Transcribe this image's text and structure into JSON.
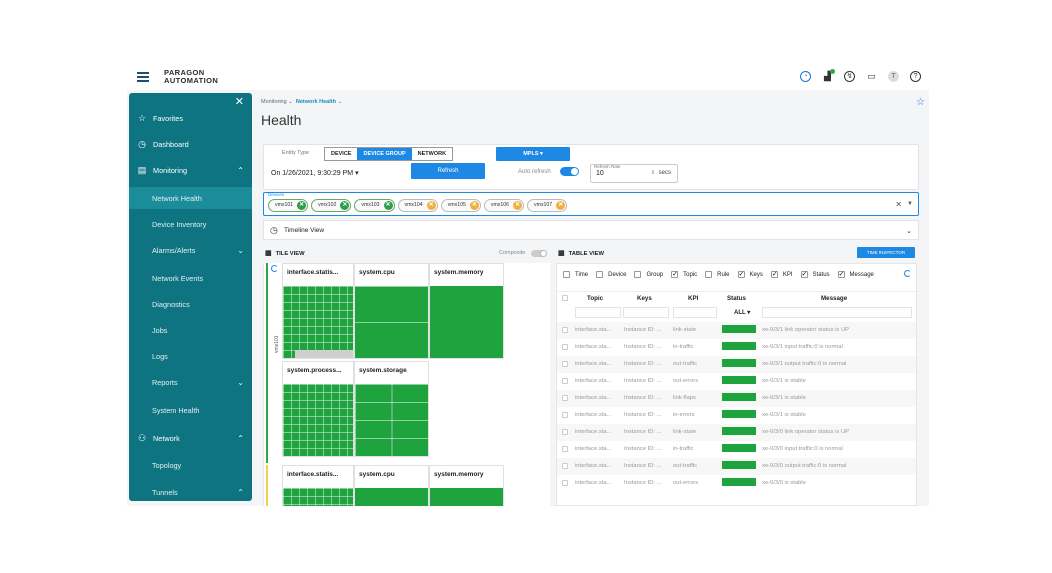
{
  "header": {
    "logo_line1": "PARAGON",
    "logo_line2": "AUTOMATION",
    "avatar_letter": "T",
    "icons": [
      "clock-icon",
      "network-status-icon",
      "timer-icon",
      "chat-icon",
      "avatar",
      "help-icon"
    ]
  },
  "sidebar": {
    "close": "✕",
    "items": [
      {
        "label": "Favorites",
        "icon": "star-icon",
        "glyph": "☆",
        "level": 0
      },
      {
        "label": "Dashboard",
        "icon": "dashboard-icon",
        "glyph": "◷",
        "level": 0
      },
      {
        "label": "Monitoring",
        "icon": "monitoring-icon",
        "glyph": "▤",
        "level": 0,
        "chevron": "up"
      },
      {
        "label": "Network Health",
        "level": 1,
        "active": true
      },
      {
        "label": "Device Inventory",
        "level": 1
      },
      {
        "label": "Alarms/Alerts",
        "level": 1,
        "chevron": "down"
      },
      {
        "label": "Network Events",
        "level": 1
      },
      {
        "label": "Diagnostics",
        "level": 1
      },
      {
        "label": "Jobs",
        "level": 1
      },
      {
        "label": "Logs",
        "level": 1
      },
      {
        "label": "Reports",
        "level": 1,
        "chevron": "down"
      },
      {
        "label": "System Health",
        "level": 1
      },
      {
        "label": "Network",
        "icon": "network-icon",
        "glyph": "⚇",
        "level": 0,
        "chevron": "up"
      },
      {
        "label": "Topology",
        "level": 1
      },
      {
        "label": "Tunnels",
        "level": 1,
        "chevron": "up"
      }
    ]
  },
  "breadcrumb": {
    "parent": "Monitoring",
    "current": "Network Health"
  },
  "page_title": "Health",
  "controls": {
    "entity_type_label": "Entity Type",
    "entity_types": [
      "DEVICE",
      "DEVICE GROUP",
      "NETWORK"
    ],
    "entity_selected": "DEVICE GROUP",
    "mpls_label": "MPLS",
    "date_label": "On 1/26/2021, 9:30:29 PM",
    "refresh_label": "Refresh",
    "auto_refresh_label": "Auto refresh",
    "auto_refresh_on": true,
    "refresh_rate_label": "Refresh Rate",
    "refresh_rate_value": "10",
    "refresh_rate_unit": "secs"
  },
  "devices": {
    "label": "Devices",
    "chips": [
      {
        "name": "vmx101",
        "state": "ok"
      },
      {
        "name": "vmx102",
        "state": "ok"
      },
      {
        "name": "vmx103",
        "state": "ok"
      },
      {
        "name": "vmx104",
        "state": "warn"
      },
      {
        "name": "vmx105",
        "state": "warn"
      },
      {
        "name": "vmx106",
        "state": "warn"
      },
      {
        "name": "vmx107",
        "state": "warn"
      }
    ]
  },
  "timeline": {
    "label": "Timeline View"
  },
  "tile_view": {
    "title": "TILE VIEW",
    "composite_label": "Composite",
    "group_label": "vmx101",
    "tiles": [
      "interface.statis...",
      "system.cpu",
      "system.memory",
      "system.process...",
      "system.storage"
    ],
    "tiles_next": [
      "interface.statis...",
      "system.cpu",
      "system.memory"
    ]
  },
  "table_view": {
    "title": "TABLE VIEW",
    "inspector_label": "TIME INSPECTOR",
    "column_toggles": [
      {
        "label": "Time",
        "on": false
      },
      {
        "label": "Device",
        "on": false
      },
      {
        "label": "Group",
        "on": false
      },
      {
        "label": "Topic",
        "on": true
      },
      {
        "label": "Rule",
        "on": false
      },
      {
        "label": "Keys",
        "on": true
      },
      {
        "label": "KPI",
        "on": true
      },
      {
        "label": "Status",
        "on": true
      },
      {
        "label": "Message",
        "on": true
      }
    ],
    "columns": {
      "topic": "Topic",
      "keys": "Keys",
      "kpi": "KPI",
      "status": "Status",
      "message": "Message"
    },
    "status_filter": "ALL",
    "status_color": "#1fa33e",
    "rows": [
      {
        "topic": "interface.sta...",
        "keys": "Instance ID: ...",
        "kpi": "link-state",
        "message": "xe-0/3/1 link operator status is UP"
      },
      {
        "topic": "interface.sta...",
        "keys": "Instance ID: ...",
        "kpi": "in-traffic",
        "message": "xe-0/3/1 input traffic:0 is normal"
      },
      {
        "topic": "interface.sta...",
        "keys": "Instance ID: ...",
        "kpi": "out-traffic",
        "message": "xe-0/3/1 output traffic:0 is normal"
      },
      {
        "topic": "interface.sta...",
        "keys": "Instance ID: ...",
        "kpi": "out-errors",
        "message": "xe-0/3/1 is stable"
      },
      {
        "topic": "interface.sta...",
        "keys": "Instance ID: ...",
        "kpi": "link-flaps",
        "message": "xe-0/3/1 is stable"
      },
      {
        "topic": "interface.sta...",
        "keys": "Instance ID: ...",
        "kpi": "in-errors",
        "message": "xe-0/3/1 is stable"
      },
      {
        "topic": "interface.sta...",
        "keys": "Instance ID: ...",
        "kpi": "link-state",
        "message": "xe-0/3/0 link operator status is UP"
      },
      {
        "topic": "interface.sta...",
        "keys": "Instance ID: ...",
        "kpi": "in-traffic",
        "message": "xe-0/3/0 input traffic:0 is normal"
      },
      {
        "topic": "interface.sta...",
        "keys": "Instance ID: ...",
        "kpi": "out-traffic",
        "message": "xe-0/3/0 output traffic:0 is normal"
      },
      {
        "topic": "interface.sta...",
        "keys": "Instance ID: ...",
        "kpi": "out-errors",
        "message": "xe-0/3/0 is stable"
      }
    ]
  }
}
